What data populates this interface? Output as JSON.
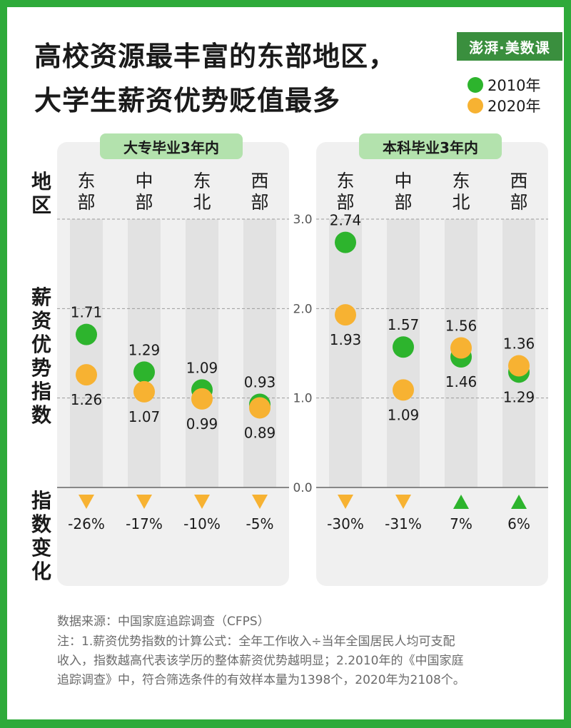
{
  "header": {
    "title_line1": "高校资源最丰富的东部地区，",
    "title_line2": "大学生薪资优势贬值最多",
    "logo": "澎湃·美数课"
  },
  "legend": [
    {
      "label": "2010年",
      "color": "#2db42d"
    },
    {
      "label": "2020年",
      "color": "#f7b232"
    }
  ],
  "row_labels": {
    "region": "地区",
    "index": "薪资优势指数",
    "change": "指数变化"
  },
  "footer": {
    "source": "数据来源：中国家庭追踪调查（CFPS）",
    "note1": "注：1.薪资优势指数的计算公式：全年工作收入÷当年全国居民人均可支配",
    "note2": "收入，指数越高代表该学历的整体薪资优势越明显；2.2010年的《中国家庭",
    "note3": "追踪调查》中，符合筛选条件的有效样本量为1398个，2020年为2108个。"
  },
  "chart_data": [
    {
      "type": "scatter",
      "title": "大专毕业3年内",
      "categories": [
        "东部",
        "中部",
        "东北",
        "西部"
      ],
      "ylim": [
        0,
        3.0
      ],
      "yticks": [
        "0.0",
        "1.0",
        "2.0",
        "3.0"
      ],
      "grid": true,
      "series": [
        {
          "name": "2010年",
          "values": [
            1.71,
            1.29,
            1.09,
            0.93
          ]
        },
        {
          "name": "2020年",
          "values": [
            1.26,
            1.07,
            0.99,
            0.89
          ]
        }
      ],
      "change": [
        "-26%",
        "-17%",
        "-10%",
        "-5%"
      ]
    },
    {
      "type": "scatter",
      "title": "本科毕业3年内",
      "categories": [
        "东部",
        "中部",
        "东北",
        "西部"
      ],
      "ylim": [
        0,
        3.0
      ],
      "yticks": [
        "0.0",
        "1.0",
        "2.0",
        "3.0"
      ],
      "grid": true,
      "series": [
        {
          "name": "2010年",
          "values": [
            2.74,
            1.57,
            1.46,
            1.29
          ]
        },
        {
          "name": "2020年",
          "values": [
            1.93,
            1.09,
            1.56,
            1.36
          ]
        }
      ],
      "change": [
        "-30%",
        "-31%",
        "7%",
        "6%"
      ]
    }
  ]
}
